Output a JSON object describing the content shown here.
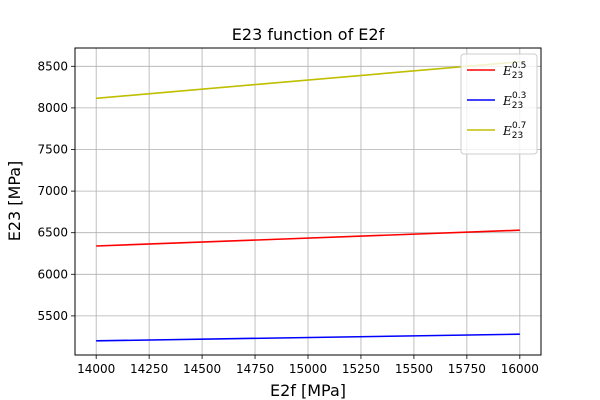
{
  "chart_data": {
    "type": "line",
    "title": "E23 function of E2f",
    "xlabel": "E2f [MPa]",
    "ylabel": "E23 [MPa]",
    "xlim": [
      13900,
      16100
    ],
    "ylim": [
      5030,
      8720
    ],
    "xticks": [
      14000,
      14250,
      14500,
      14750,
      15000,
      15250,
      15500,
      15750,
      16000
    ],
    "yticks": [
      5500,
      6000,
      6500,
      7000,
      7500,
      8000,
      8500
    ],
    "grid": true,
    "legend_position": "top-right",
    "series": [
      {
        "base": "E",
        "sub": "23",
        "sup": "0.5",
        "color": "#ff0000",
        "x": [
          14000,
          16000
        ],
        "y": [
          6340,
          6530
        ]
      },
      {
        "base": "E",
        "sub": "23",
        "sup": "0.3",
        "color": "#0000ff",
        "x": [
          14000,
          16000
        ],
        "y": [
          5200,
          5280
        ]
      },
      {
        "base": "E",
        "sub": "23",
        "sup": "0.7",
        "color": "#bfbf00",
        "x": [
          14000,
          16000
        ],
        "y": [
          8115,
          8555
        ]
      }
    ]
  }
}
